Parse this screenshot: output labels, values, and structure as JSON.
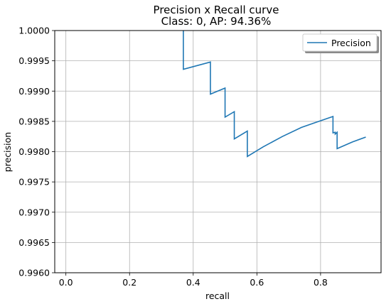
{
  "chart_data": {
    "type": "line",
    "title": "Precision x Recall curve",
    "subtitle": "Class: 0, AP: 94.36%",
    "xlabel": "recall",
    "ylabel": "precision",
    "xlim": [
      -0.035,
      0.99
    ],
    "ylim": [
      0.996,
      1.0
    ],
    "xticks": [
      0.0,
      0.2,
      0.4,
      0.6,
      0.8
    ],
    "xtick_labels": [
      "0.0",
      "0.2",
      "0.4",
      "0.6",
      "0.8"
    ],
    "yticks": [
      0.996,
      0.9965,
      0.997,
      0.9975,
      0.998,
      0.9985,
      0.999,
      0.9995,
      1.0
    ],
    "ytick_labels": [
      "0.9960",
      "0.9965",
      "0.9970",
      "0.9975",
      "0.9980",
      "0.9985",
      "0.9990",
      "0.9995",
      "1.0000"
    ],
    "grid": true,
    "legend": {
      "position": "top-right"
    },
    "series": [
      {
        "name": "Precision",
        "color": "#1f77b4",
        "points": [
          [
            0.369,
            1.0
          ],
          [
            0.369,
            0.99936
          ],
          [
            0.454,
            0.99948
          ],
          [
            0.454,
            0.99895
          ],
          [
            0.5,
            0.99905
          ],
          [
            0.5,
            0.99857
          ],
          [
            0.529,
            0.99866
          ],
          [
            0.529,
            0.99821
          ],
          [
            0.57,
            0.99834
          ],
          [
            0.57,
            0.99792
          ],
          [
            0.62,
            0.99808
          ],
          [
            0.68,
            0.99825
          ],
          [
            0.74,
            0.9984
          ],
          [
            0.8,
            0.99851
          ],
          [
            0.839,
            0.99858
          ],
          [
            0.839,
            0.99831
          ],
          [
            0.846,
            0.99832
          ],
          [
            0.846,
            0.99829
          ],
          [
            0.852,
            0.99832
          ],
          [
            0.852,
            0.99805
          ],
          [
            0.9,
            0.99816
          ],
          [
            0.942,
            0.99824
          ]
        ]
      }
    ]
  }
}
